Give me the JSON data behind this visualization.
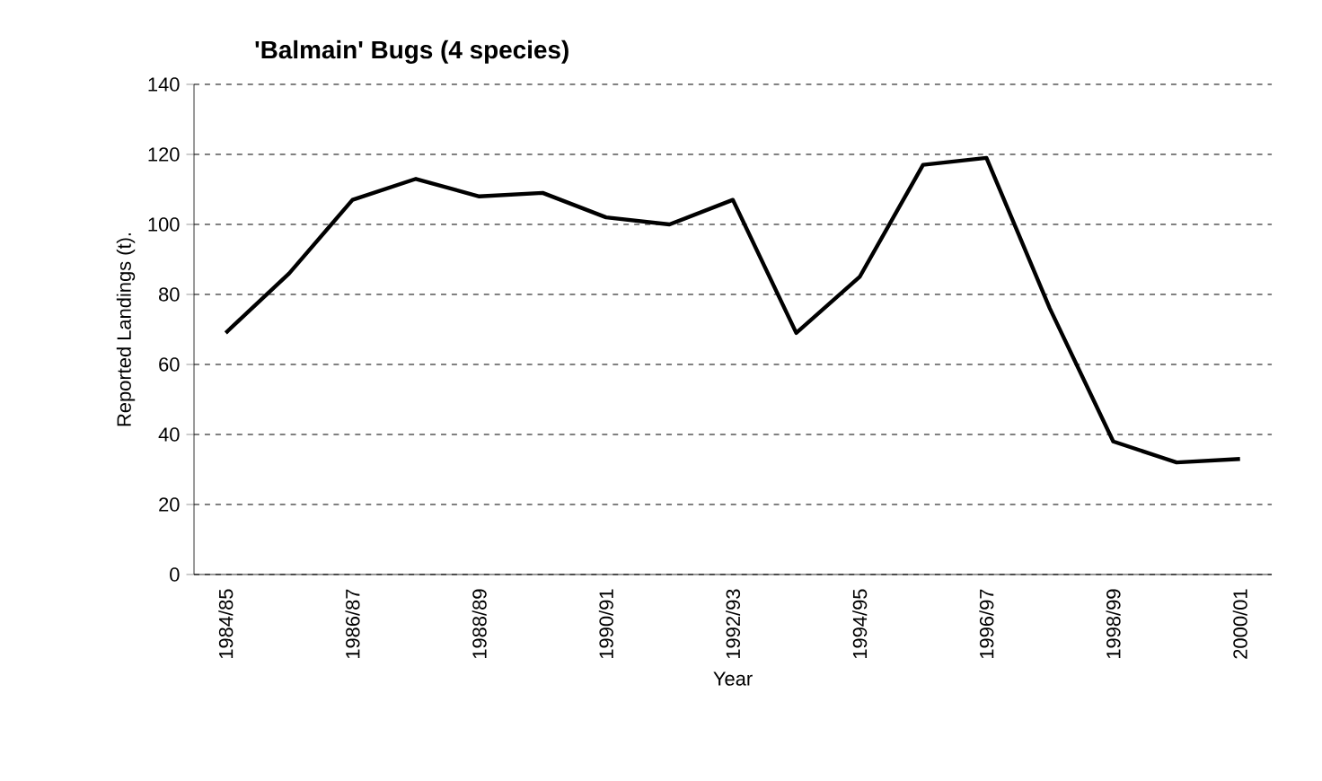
{
  "chart_data": {
    "type": "line",
    "title": "'Balmain' Bugs (4 species)",
    "xlabel": "Year",
    "ylabel": "Reported Landings (t).",
    "categories": [
      "1984/85",
      null,
      "1986/87",
      null,
      "1988/89",
      null,
      "1990/91",
      null,
      "1992/93",
      null,
      "1994/95",
      null,
      "1996/97",
      null,
      "1998/99",
      null,
      "2000/01"
    ],
    "series": [
      {
        "color": "#000000",
        "values": [
          69,
          86,
          107,
          113,
          108,
          109,
          102,
          100,
          107,
          69,
          85,
          117,
          119,
          76,
          38,
          32,
          33
        ]
      }
    ],
    "ylim": [
      0,
      140
    ],
    "yticks": [
      0,
      20,
      40,
      60,
      80,
      100,
      120,
      140
    ],
    "grid": "y",
    "marker": "none",
    "line_style": "solid"
  }
}
